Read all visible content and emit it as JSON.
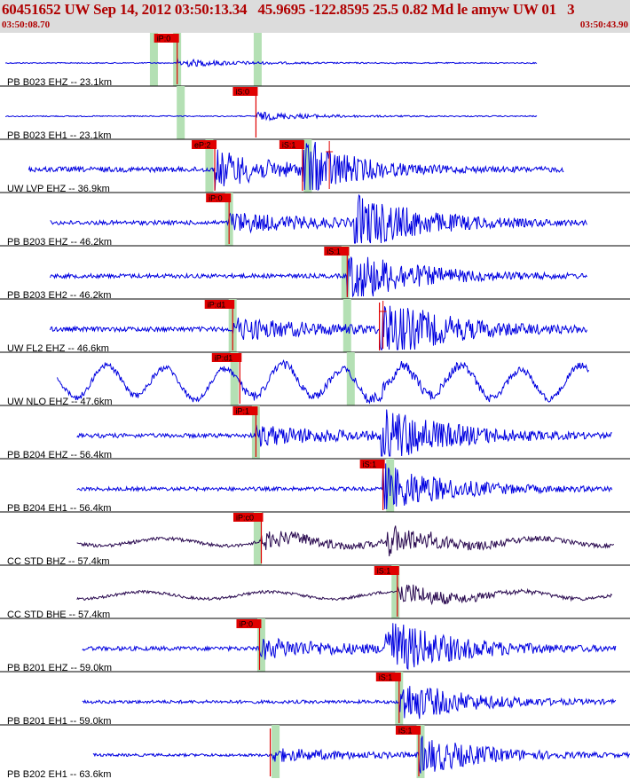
{
  "header": {
    "title": "60451652 UW Sep 14, 2012 03:50:13.34   45.9695 -122.8595 25.5 0.82 Md le amyw UW 01   3",
    "start_time": "03:50:08.70",
    "end_time": "03:50:43.90"
  },
  "colors": {
    "background": "#ffffff",
    "header_bg": "#dcdcdc",
    "header_text": "#b00000",
    "trace_short_period": "#0000e0",
    "trace_broadband": "#2a0a50",
    "pick": "#e00000",
    "window": "#b4e0b4"
  },
  "chart_data": {
    "type": "waveform-record-section",
    "x_range_seconds_from_start": [
      0,
      35.2
    ],
    "traces": [
      {
        "label": "PB B023 EHZ -- 23.1km",
        "x_range": [
          0.3,
          30.0
        ],
        "amplitude": 0.12,
        "envelope": "local",
        "color": "short_period",
        "p_pick": {
          "label": "iP:0",
          "time": 9.9,
          "window": 8.4,
          "green_window": 9.7
        },
        "green_window_2": 14.2
      },
      {
        "label": "PB B023 EH1 -- 23.1km",
        "x_range": [
          0.3,
          30.0
        ],
        "amplitude": 0.12,
        "envelope": "local",
        "color": "short_period",
        "p_pick": {
          "label": "iS:0",
          "time": 14.3,
          "window": 9.9
        }
      },
      {
        "label": "UW LVP EHZ -- 36.9km",
        "x_range": [
          1.6,
          31.5
        ],
        "amplitude": 0.55,
        "envelope": "local",
        "color": "short_period",
        "p_pick": {
          "label": "eP:2",
          "time": 12.0,
          "window": 11.5
        },
        "s_pick": {
          "label": "iS:1",
          "time": 16.9,
          "window": 17.0
        },
        "amp_marker": 18.4
      },
      {
        "label": "PB B203 EHZ -- 46.2km",
        "x_range": [
          2.8,
          32.8
        ],
        "amplitude": 0.45,
        "envelope": "regional",
        "color": "short_period",
        "p_pick": {
          "label": "iP:0",
          "time": 12.8,
          "window": 12.6
        }
      },
      {
        "label": "PB B203 EH2 -- 46.2km",
        "x_range": [
          2.8,
          32.8
        ],
        "amplitude": 0.45,
        "envelope": "regional",
        "color": "short_period",
        "s_pick": {
          "label": "iS:1",
          "time": 19.4,
          "window": 19.1
        }
      },
      {
        "label": "UW FL2 EHZ -- 46.6km",
        "x_range": [
          2.8,
          32.8
        ],
        "amplitude": 0.5,
        "envelope": "regional",
        "color": "short_period",
        "p_pick": {
          "label": "iP:d1",
          "time": 13.0,
          "window": 12.8
        },
        "s_pick": {
          "label": "",
          "time": 21.2,
          "window": 19.2
        },
        "amp_marker": 21.4
      },
      {
        "label": "UW NLO EHZ -- 47.6km",
        "x_range": [
          3.2,
          32.9
        ],
        "amplitude": 0.45,
        "envelope": "longperiod",
        "color": "short_period",
        "p_pick": {
          "label": "iP:d1",
          "time": 13.4,
          "window": 12.9
        },
        "green_window_2": 19.4
      },
      {
        "label": "PB B204 EHZ -- 56.4km",
        "x_range": [
          4.3,
          34.2
        ],
        "amplitude": 0.45,
        "envelope": "regional",
        "color": "short_period",
        "p_pick": {
          "label": "iP:1",
          "time": 14.3,
          "window": 14.1
        }
      },
      {
        "label": "PB B204 EH1 -- 56.4km",
        "x_range": [
          4.3,
          34.2
        ],
        "amplitude": 0.4,
        "envelope": "regional",
        "color": "short_period",
        "s_pick": {
          "label": "iS:1",
          "time": 21.4,
          "window": 21.6
        }
      },
      {
        "label": "CC STD BHZ -- 57.4km",
        "x_range": [
          4.3,
          34.3
        ],
        "amplitude": 0.35,
        "envelope": "broadband",
        "color": "broadband",
        "p_pick": {
          "label": "iP:c0",
          "time": 14.6,
          "window": 14.2
        }
      },
      {
        "label": "CC STD BHE -- 57.4km",
        "x_range": [
          4.3,
          34.2
        ],
        "amplitude": 0.3,
        "envelope": "broadband",
        "color": "broadband",
        "s_pick": {
          "label": "iS:1",
          "time": 22.2,
          "window": 21.9
        }
      },
      {
        "label": "PB B201 EHZ -- 59.0km",
        "x_range": [
          4.6,
          34.4
        ],
        "amplitude": 0.45,
        "envelope": "regional",
        "color": "short_period",
        "p_pick": {
          "label": "iP:0",
          "time": 14.5,
          "window": 14.4
        }
      },
      {
        "label": "PB B201 EH1 -- 59.0km",
        "x_range": [
          4.6,
          34.4
        ],
        "amplitude": 0.35,
        "envelope": "regional",
        "color": "short_period",
        "s_pick": {
          "label": "iS:1",
          "time": 22.3,
          "window": 22.1
        }
      },
      {
        "label": "PB B202 EH1 -- 63.6km",
        "x_range": [
          5.2,
          35.2
        ],
        "amplitude": 0.3,
        "envelope": "regional",
        "color": "short_period",
        "p_pick": {
          "label": "",
          "time": 15.1,
          "window": 15.2
        },
        "s_pick": {
          "label": "iS:1",
          "time": 23.4,
          "window": 23.3
        }
      }
    ]
  }
}
